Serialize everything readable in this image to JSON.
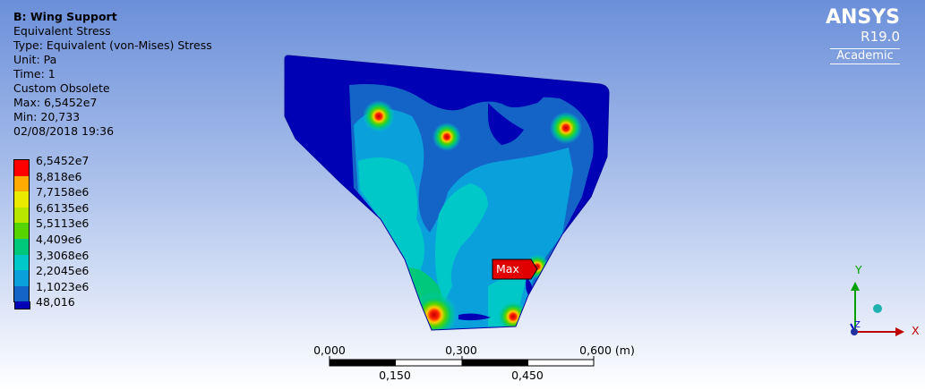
{
  "info": {
    "title": "B: Wing Support",
    "lines": [
      "Equivalent Stress",
      "Type: Equivalent (von-Mises) Stress",
      "Unit: Pa",
      "Time: 1",
      "Custom Obsolete",
      "Max: 6,5452e7",
      "Min: 20,733",
      "02/08/2018 19:36"
    ]
  },
  "legend": {
    "labels": [
      "6,5452e7",
      "8,818e6",
      "7,7158e6",
      "6,6135e6",
      "5,5113e6",
      "4,409e6",
      "3,3068e6",
      "2,2045e6",
      "1,1023e6",
      "48,016"
    ],
    "colors": [
      "#ff0000",
      "#ffaa00",
      "#eaea00",
      "#b9e600",
      "#55d400",
      "#00c87a",
      "#00c8c8",
      "#0aa0dc",
      "#1464c8",
      "#0000b4"
    ]
  },
  "logo": {
    "brand": "ANSYS",
    "version": "R19.0",
    "edition": "Academic"
  },
  "probe": {
    "label": "Max"
  },
  "scale_bar": {
    "top_labels": [
      "0,000",
      "0,300",
      "0,600 (m)"
    ],
    "bottom_labels": [
      "0,150",
      "0,450"
    ]
  },
  "triad": {
    "x_label": "X",
    "y_label": "Y",
    "z_label": "Z"
  }
}
